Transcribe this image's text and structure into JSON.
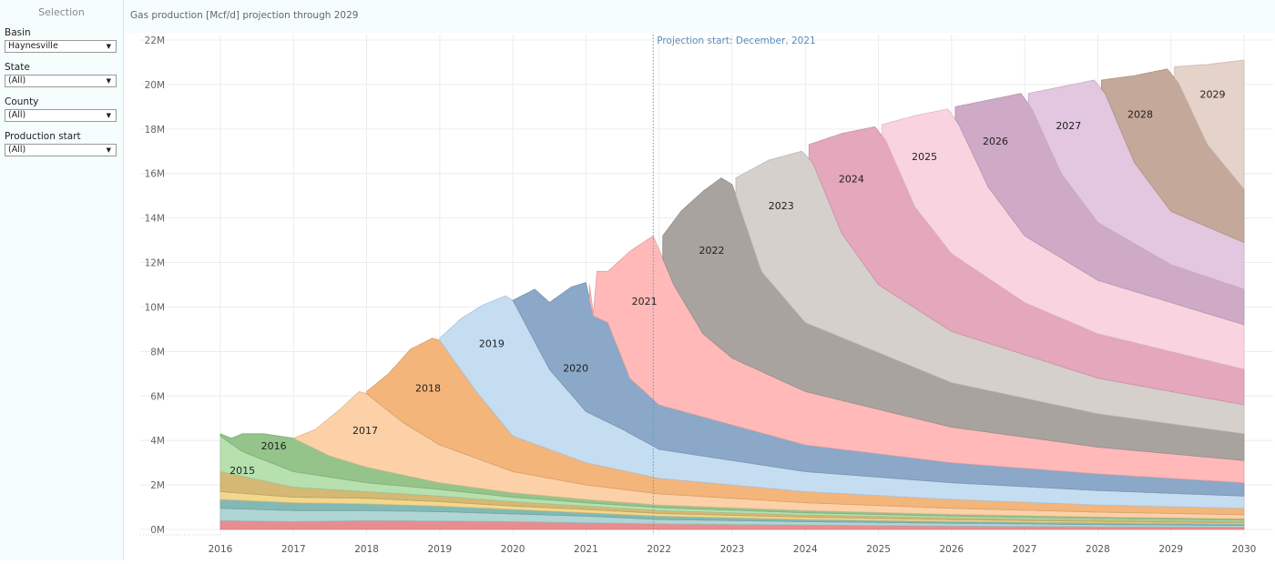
{
  "sidebar": {
    "title": "Selection",
    "filters": [
      {
        "label": "Basin",
        "value": "Haynesville"
      },
      {
        "label": "State",
        "value": "(All)"
      },
      {
        "label": "County",
        "value": "(All)"
      },
      {
        "label": "Production start",
        "value": "(All)"
      }
    ]
  },
  "header": {
    "title": "Gas production [Mcf/d] projection through 2029"
  },
  "chart_data": {
    "type": "area",
    "title": "Gas production [Mcf/d] projection through 2029",
    "xlabel": "",
    "ylabel": "",
    "xlim": [
      2015.55,
      2030.1
    ],
    "ylim": [
      -0.3,
      22.2
    ],
    "y_unit": "M",
    "x_ticks": [
      "2016",
      "2017",
      "2018",
      "2019",
      "2020",
      "2021",
      "2022",
      "2023",
      "2024",
      "2025",
      "2026",
      "2027",
      "2028",
      "2029",
      "2030"
    ],
    "y_ticks": [
      "0M",
      "2M",
      "4M",
      "6M",
      "8M",
      "10M",
      "12M",
      "14M",
      "16M",
      "18M",
      "20M",
      "22M"
    ],
    "grid": true,
    "stacked": true,
    "annotation": {
      "x": 2021.92,
      "text": "Projection start: December, 2021"
    },
    "series": [
      {
        "name": "older-1",
        "label": "",
        "color": "#e88d8f",
        "x": [
          2016,
          2017,
          2018,
          2019,
          2020,
          2021,
          2022,
          2024,
          2026,
          2028,
          2030
        ],
        "top": [
          0.4,
          0.35,
          0.4,
          0.38,
          0.35,
          0.3,
          0.25,
          0.2,
          0.15,
          0.12,
          0.1
        ]
      },
      {
        "name": "older-2",
        "label": "",
        "color": "#afd5d4",
        "x": [
          2016,
          2017,
          2018,
          2019,
          2020,
          2021,
          2022,
          2024,
          2026,
          2028,
          2030
        ],
        "top": [
          0.95,
          0.85,
          0.85,
          0.8,
          0.7,
          0.6,
          0.45,
          0.35,
          0.28,
          0.22,
          0.18
        ]
      },
      {
        "name": "older-3",
        "label": "",
        "color": "#82b9b6",
        "x": [
          2016,
          2017,
          2018,
          2019,
          2020,
          2021,
          2022,
          2024,
          2026,
          2028,
          2030
        ],
        "top": [
          1.35,
          1.2,
          1.15,
          1.05,
          0.9,
          0.75,
          0.6,
          0.45,
          0.36,
          0.3,
          0.25
        ]
      },
      {
        "name": "older-4",
        "label": "",
        "color": "#f2d88c",
        "x": [
          2016,
          2017,
          2018,
          2019,
          2020,
          2021,
          2022,
          2024,
          2026,
          2028,
          2030
        ],
        "top": [
          1.7,
          1.45,
          1.4,
          1.25,
          1.05,
          0.9,
          0.72,
          0.55,
          0.44,
          0.36,
          0.3
        ]
      },
      {
        "name": "older-5",
        "label": "",
        "color": "#d4b873",
        "x": [
          2016,
          2017,
          2018,
          2019,
          2020,
          2021,
          2022,
          2024,
          2026,
          2028,
          2030
        ],
        "top": [
          2.6,
          1.9,
          1.7,
          1.5,
          1.25,
          1.05,
          0.85,
          0.65,
          0.52,
          0.43,
          0.36
        ]
      },
      {
        "name": "v2015",
        "label": "2015",
        "color": "#b6e0ae",
        "x": [
          2016,
          2016.3,
          2017,
          2018,
          2019,
          2020,
          2021,
          2022,
          2024,
          2026,
          2028,
          2030
        ],
        "top": [
          4.2,
          3.5,
          2.6,
          2.1,
          1.8,
          1.45,
          1.2,
          0.98,
          0.75,
          0.6,
          0.5,
          0.42
        ]
      },
      {
        "name": "v2016",
        "label": "2016",
        "color": "#94c48a",
        "x": [
          2016,
          2016.15,
          2016.3,
          2016.6,
          2017,
          2017.5,
          2018,
          2019,
          2020,
          2021,
          2022,
          2024,
          2026,
          2028,
          2030
        ],
        "top": [
          4.3,
          4.1,
          4.3,
          4.3,
          4.1,
          3.3,
          2.8,
          2.1,
          1.65,
          1.35,
          1.1,
          0.85,
          0.68,
          0.56,
          0.48
        ]
      },
      {
        "name": "v2017",
        "label": "2017",
        "color": "#fdd1a8",
        "x": [
          2017,
          2017.3,
          2017.6,
          2017.9,
          2018,
          2018.5,
          2019,
          2020,
          2021,
          2022,
          2024,
          2026,
          2028,
          2030
        ],
        "top": [
          4.1,
          4.5,
          5.3,
          6.2,
          6.1,
          4.8,
          3.8,
          2.6,
          2.0,
          1.6,
          1.2,
          0.95,
          0.78,
          0.66
        ]
      },
      {
        "name": "v2018",
        "label": "2018",
        "color": "#f4b57a",
        "x": [
          2018,
          2018.3,
          2018.6,
          2018.9,
          2019,
          2019.5,
          2020,
          2021,
          2022,
          2024,
          2026,
          2028,
          2030
        ],
        "top": [
          6.2,
          7.0,
          8.1,
          8.6,
          8.5,
          6.2,
          4.2,
          3.0,
          2.3,
          1.7,
          1.35,
          1.1,
          0.95
        ]
      },
      {
        "name": "v2019",
        "label": "2019",
        "color": "#c5ddf1",
        "x": [
          2019,
          2019.3,
          2019.6,
          2019.9,
          2020,
          2020.5,
          2021,
          2021.5,
          2022,
          2024,
          2026,
          2028,
          2030
        ],
        "top": [
          8.6,
          9.5,
          10.1,
          10.5,
          10.3,
          7.2,
          5.3,
          4.5,
          3.6,
          2.6,
          2.1,
          1.75,
          1.5
        ]
      },
      {
        "name": "v2020",
        "label": "2020",
        "color": "#8ba8c8",
        "x": [
          2020,
          2020.3,
          2020.5,
          2020.8,
          2021,
          2021.1,
          2021.3,
          2021.6,
          2022,
          2024,
          2026,
          2028,
          2030
        ],
        "top": [
          10.3,
          10.8,
          10.2,
          10.9,
          11.1,
          9.6,
          9.3,
          6.8,
          5.6,
          3.8,
          3.0,
          2.5,
          2.1
        ]
      },
      {
        "name": "v2021",
        "label": "2021",
        "color": "#ffb9b9",
        "x": [
          2021.05,
          2021.1,
          2021.15,
          2021.3,
          2021.6,
          2021.92,
          2022.2,
          2022.6,
          2023,
          2024,
          2026,
          2028,
          2030
        ],
        "top": [
          11.0,
          9.7,
          11.6,
          11.6,
          12.5,
          13.2,
          11.0,
          8.8,
          7.7,
          6.2,
          4.6,
          3.7,
          3.1
        ]
      },
      {
        "name": "v2022",
        "label": "2022",
        "color": "#a9a3a0",
        "x": [
          2022.05,
          2022.3,
          2022.6,
          2022.85,
          2023,
          2023.4,
          2024,
          2026,
          2028,
          2030
        ],
        "top": [
          13.2,
          14.3,
          15.2,
          15.8,
          15.5,
          11.6,
          9.3,
          6.6,
          5.2,
          4.3
        ]
      },
      {
        "name": "v2023",
        "label": "2023",
        "color": "#d5d0cc",
        "x": [
          2023.05,
          2023.5,
          2023.95,
          2024.1,
          2024.5,
          2025,
          2026,
          2028,
          2030
        ],
        "top": [
          15.8,
          16.6,
          17.0,
          16.5,
          13.3,
          11.0,
          8.9,
          6.8,
          5.6
        ]
      },
      {
        "name": "v2024",
        "label": "2024",
        "color": "#e4a7bc",
        "x": [
          2024.05,
          2024.5,
          2024.95,
          2025.1,
          2025.5,
          2026,
          2027,
          2028,
          2030
        ],
        "top": [
          17.3,
          17.8,
          18.1,
          17.5,
          14.5,
          12.4,
          10.2,
          8.8,
          7.2
        ]
      },
      {
        "name": "v2025",
        "label": "2025",
        "color": "#fad3e0",
        "x": [
          2025.05,
          2025.5,
          2025.95,
          2026.1,
          2026.5,
          2027,
          2028,
          2030
        ],
        "top": [
          18.2,
          18.6,
          18.9,
          18.2,
          15.4,
          13.2,
          11.2,
          9.2
        ]
      },
      {
        "name": "v2026",
        "label": "2026",
        "color": "#cfaac6",
        "x": [
          2026.05,
          2026.5,
          2026.95,
          2027.1,
          2027.5,
          2028,
          2029,
          2030
        ],
        "top": [
          19.0,
          19.3,
          19.6,
          18.9,
          16.0,
          13.8,
          11.9,
          10.8
        ]
      },
      {
        "name": "v2027",
        "label": "2027",
        "color": "#e3c6df",
        "x": [
          2027.05,
          2027.5,
          2027.95,
          2028.1,
          2028.5,
          2029,
          2030
        ],
        "top": [
          19.6,
          19.9,
          20.2,
          19.6,
          16.5,
          14.3,
          12.9
        ]
      },
      {
        "name": "v2028",
        "label": "2028",
        "color": "#c4a899",
        "x": [
          2028.05,
          2028.5,
          2028.95,
          2029.1,
          2029.5,
          2030
        ],
        "top": [
          20.2,
          20.4,
          20.7,
          20.1,
          17.3,
          15.3
        ]
      },
      {
        "name": "v2029",
        "label": "2029",
        "color": "#e5d2c8",
        "x": [
          2029.05,
          2029.5,
          2030
        ],
        "top": [
          20.8,
          20.9,
          21.1
        ]
      }
    ],
    "labels": [
      {
        "text": "2015",
        "x": 2016.3,
        "y": 2.5
      },
      {
        "text": "2016",
        "x": 2016.73,
        "y": 3.6
      },
      {
        "text": "2017",
        "x": 2017.98,
        "y": 4.3
      },
      {
        "text": "2018",
        "x": 2018.84,
        "y": 6.2
      },
      {
        "text": "2019",
        "x": 2019.71,
        "y": 8.2
      },
      {
        "text": "2020",
        "x": 2020.86,
        "y": 7.1
      },
      {
        "text": "2021",
        "x": 2021.8,
        "y": 10.1
      },
      {
        "text": "2022",
        "x": 2022.72,
        "y": 12.4
      },
      {
        "text": "2023",
        "x": 2023.67,
        "y": 14.4
      },
      {
        "text": "2024",
        "x": 2024.63,
        "y": 15.6
      },
      {
        "text": "2025",
        "x": 2025.63,
        "y": 16.6
      },
      {
        "text": "2026",
        "x": 2026.6,
        "y": 17.3
      },
      {
        "text": "2027",
        "x": 2027.6,
        "y": 18.0
      },
      {
        "text": "2028",
        "x": 2028.58,
        "y": 18.5
      },
      {
        "text": "2029",
        "x": 2029.57,
        "y": 19.4
      }
    ]
  }
}
